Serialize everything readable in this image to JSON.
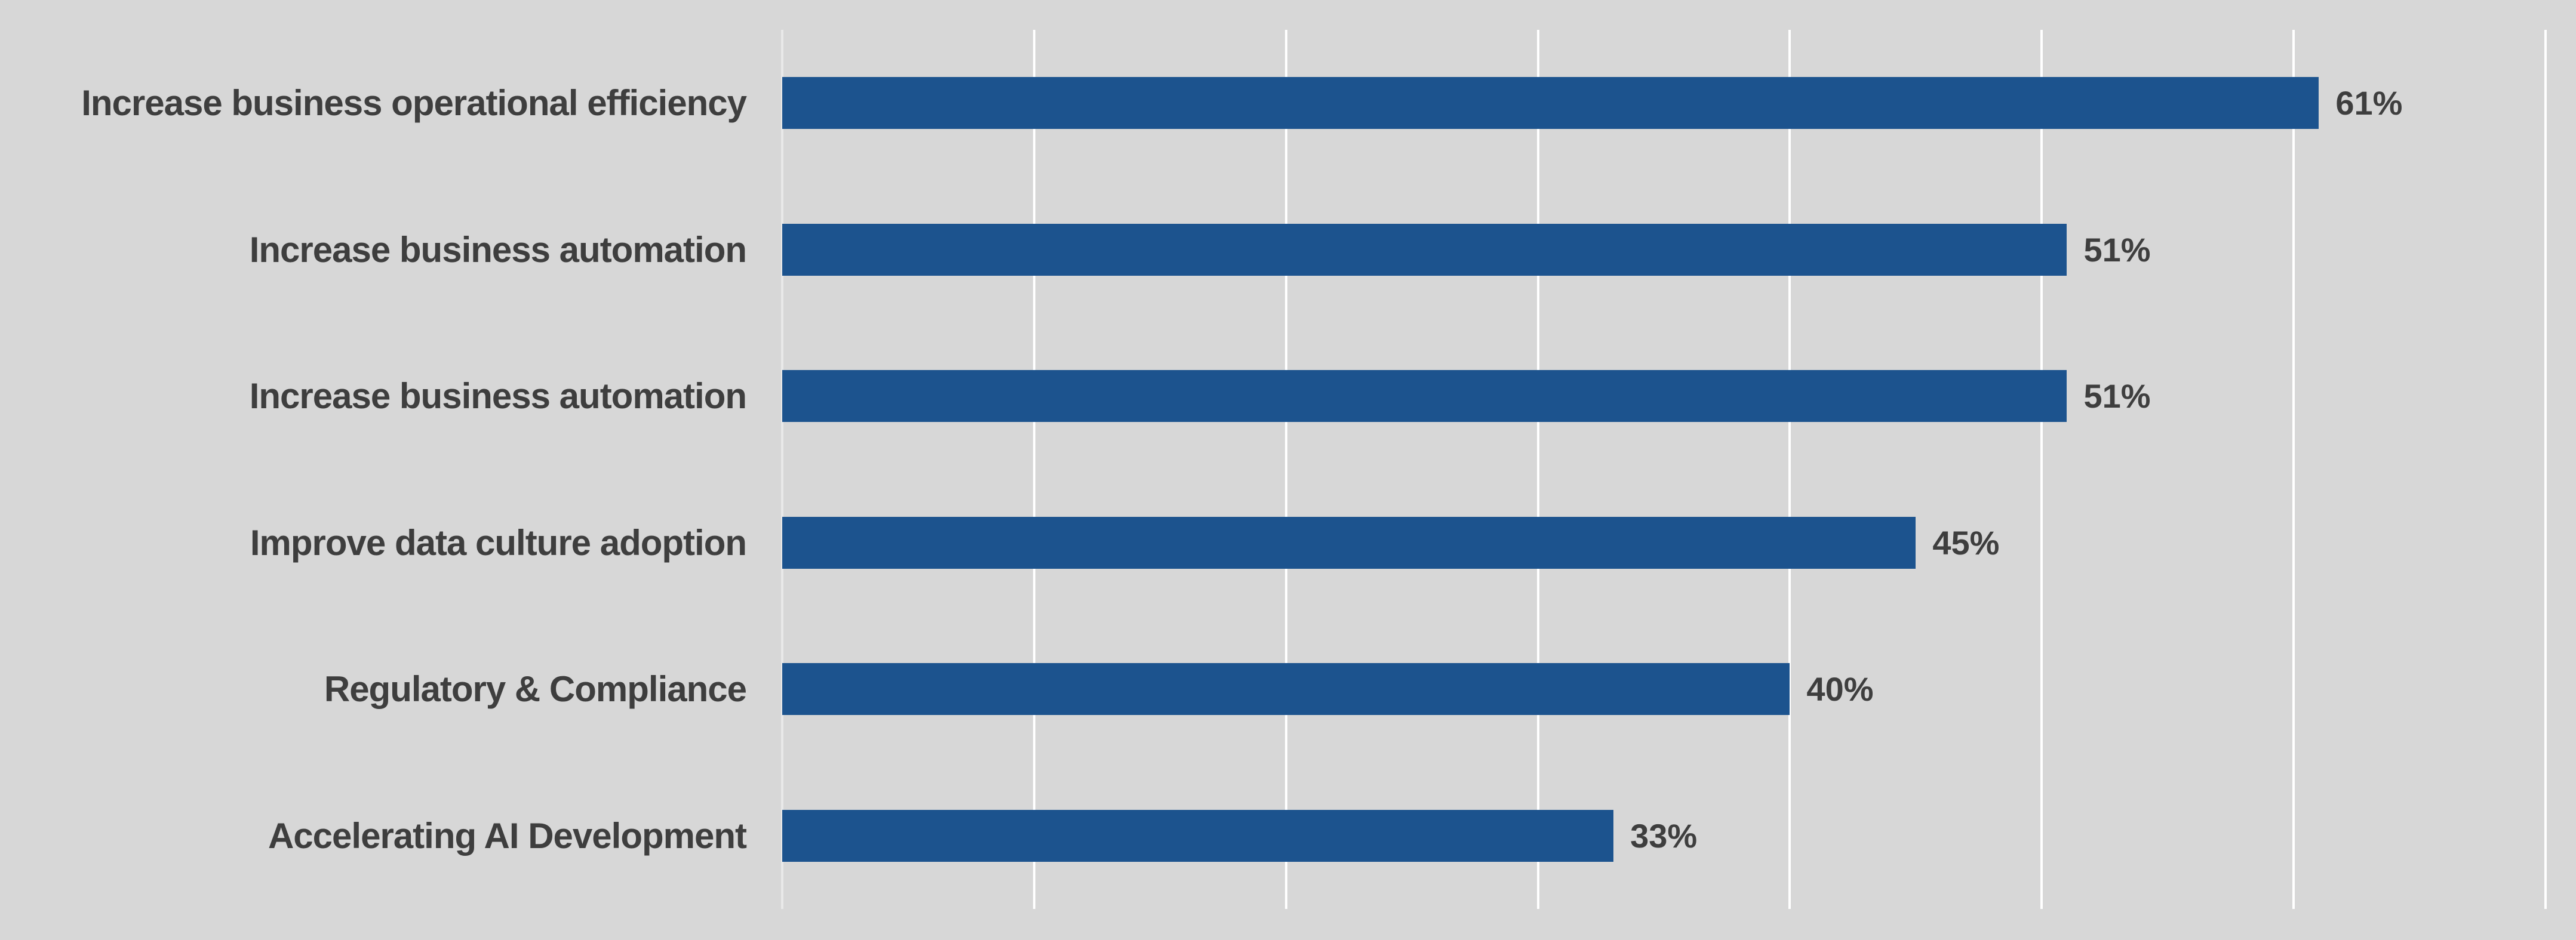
{
  "chart_data": {
    "type": "bar",
    "orientation": "horizontal",
    "title": "",
    "xlabel": "",
    "ylabel": "",
    "categories": [
      "Increase business operational efficiency",
      "Increase business automation",
      "Increase business automation",
      "Improve data culture adoption",
      "Regulatory & Compliance",
      "Accelerating AI Development"
    ],
    "values": [
      61,
      51,
      51,
      45,
      40,
      33
    ],
    "value_labels": [
      "61%",
      "51%",
      "51%",
      "45%",
      "40%",
      "33%"
    ],
    "xlim": [
      0,
      70
    ],
    "gridline_interval": 10,
    "grid": true,
    "legend": false,
    "axis_tick_labels_visible": false
  },
  "colors": {
    "background": "#D7D7D7",
    "bar": "#1C538E",
    "gridline": "#FFFFFF",
    "text": "#3E3E3E"
  }
}
